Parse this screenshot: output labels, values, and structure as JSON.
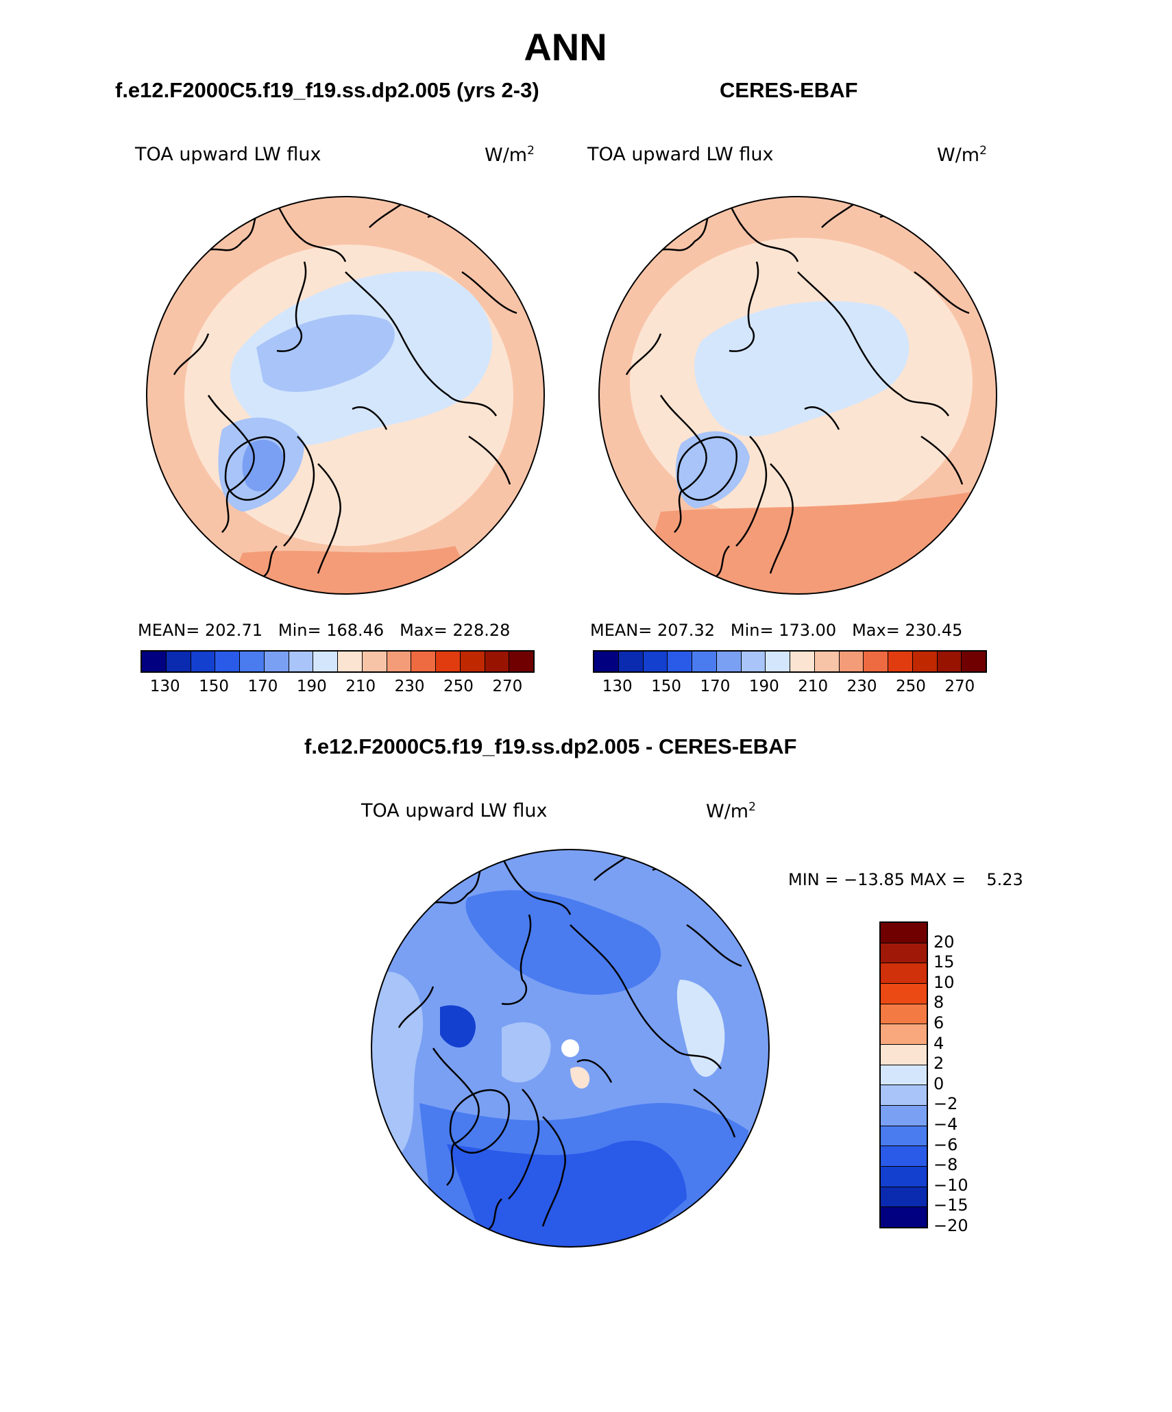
{
  "page_title": "ANN",
  "panels": [
    {
      "id": "model",
      "case_title": "f.e12.F2000C5.f19_f19.ss.dp2.005 (yrs 2-3)",
      "variable": "TOA upward LW flux",
      "units_base": "W/m",
      "units_exp": "2",
      "stats": {
        "mean_label": "MEAN=",
        "mean": "202.71",
        "min_label": "Min=",
        "min": "168.46",
        "max_label": "Max=",
        "max": "228.28"
      }
    },
    {
      "id": "obs",
      "case_title": "CERES-EBAF",
      "variable": "TOA upward LW flux",
      "units_base": "W/m",
      "units_exp": "2",
      "stats": {
        "mean_label": "MEAN=",
        "mean": "207.32",
        "min_label": "Min=",
        "min": "173.00",
        "max_label": "Max=",
        "max": "230.45"
      }
    }
  ],
  "colorbar_top": {
    "colors": [
      "#000080",
      "#0a2ab0",
      "#1440d0",
      "#2a5ae8",
      "#4a7cf0",
      "#7aa0f4",
      "#a8c4f8",
      "#d4e6fc",
      "#fce4d2",
      "#f8c4a8",
      "#f49c78",
      "#ee6a40",
      "#e03c10",
      "#c02800",
      "#981400",
      "#700000"
    ],
    "tick_labels": [
      "130",
      "150",
      "170",
      "190",
      "210",
      "230",
      "250",
      "270"
    ]
  },
  "diff": {
    "title": "f.e12.F2000C5.f19_f19.ss.dp2.005 - CERES-EBAF",
    "variable": "TOA upward LW flux",
    "units_base": "W/m",
    "units_exp": "2",
    "minmax": "MIN = −13.85 MAX =    5.23",
    "colorbar": {
      "colors_top_to_bottom": [
        "#700000",
        "#a01808",
        "#d0300a",
        "#ec4a14",
        "#f47a44",
        "#f8a87c",
        "#fce4d2",
        "#d4e6fc",
        "#a8c4f8",
        "#7aa0f4",
        "#4a7cf0",
        "#2a5ae8",
        "#1440d0",
        "#0a2ab0",
        "#000080"
      ],
      "tick_labels": [
        "20",
        "15",
        "10",
        "8",
        "6",
        "4",
        "2",
        "0",
        "−2",
        "−4",
        "−6",
        "−8",
        "−10",
        "−15",
        "−20"
      ]
    }
  },
  "map_colors": {
    "m1": "#fce4d2",
    "m2": "#f8c4a8",
    "m3": "#f49c78",
    "l1": "#d4e6fc",
    "l2": "#a8c4f8",
    "l3": "#7aa0f4",
    "d1": "#d4e6fc",
    "d2": "#a8c4f8",
    "d3": "#7aa0f4",
    "d4": "#4a7cf0",
    "d5": "#2a5ae8",
    "d6": "#1440d0",
    "dp": "#fce4d2"
  }
}
